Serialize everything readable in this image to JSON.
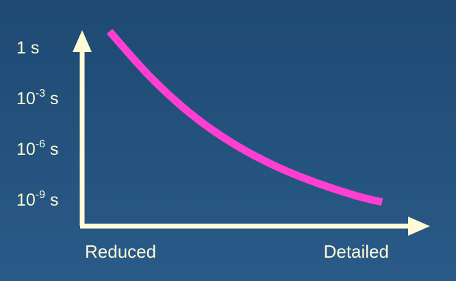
{
  "chart_data": {
    "type": "line",
    "title": "",
    "xlabel": "",
    "ylabel": "",
    "x_tick_labels": [
      "Reduced",
      "Detailed"
    ],
    "y_scale": "log",
    "y_ticks": [
      {
        "value": 1,
        "base": "1",
        "exp": "",
        "unit": " s"
      },
      {
        "value": 0.001,
        "base": "10",
        "exp": "-3",
        "unit": " s"
      },
      {
        "value": 1e-06,
        "base": "10",
        "exp": "-6",
        "unit": " s"
      },
      {
        "value": 1e-09,
        "base": "10",
        "exp": "-9",
        "unit": " s"
      }
    ],
    "series": [
      {
        "color": "#ff3fd2",
        "x": [
          0.0,
          0.15,
          0.3,
          0.45,
          0.6,
          0.75,
          0.9,
          1.0
        ],
        "y_exp": [
          0.9,
          -1.8,
          -4.0,
          -5.7,
          -7.0,
          -8.0,
          -8.8,
          -9.2
        ]
      }
    ],
    "grid": false,
    "colors": {
      "axis": "#fffbd6",
      "text": "#fffbd6",
      "line": "#ff3fd2"
    }
  }
}
